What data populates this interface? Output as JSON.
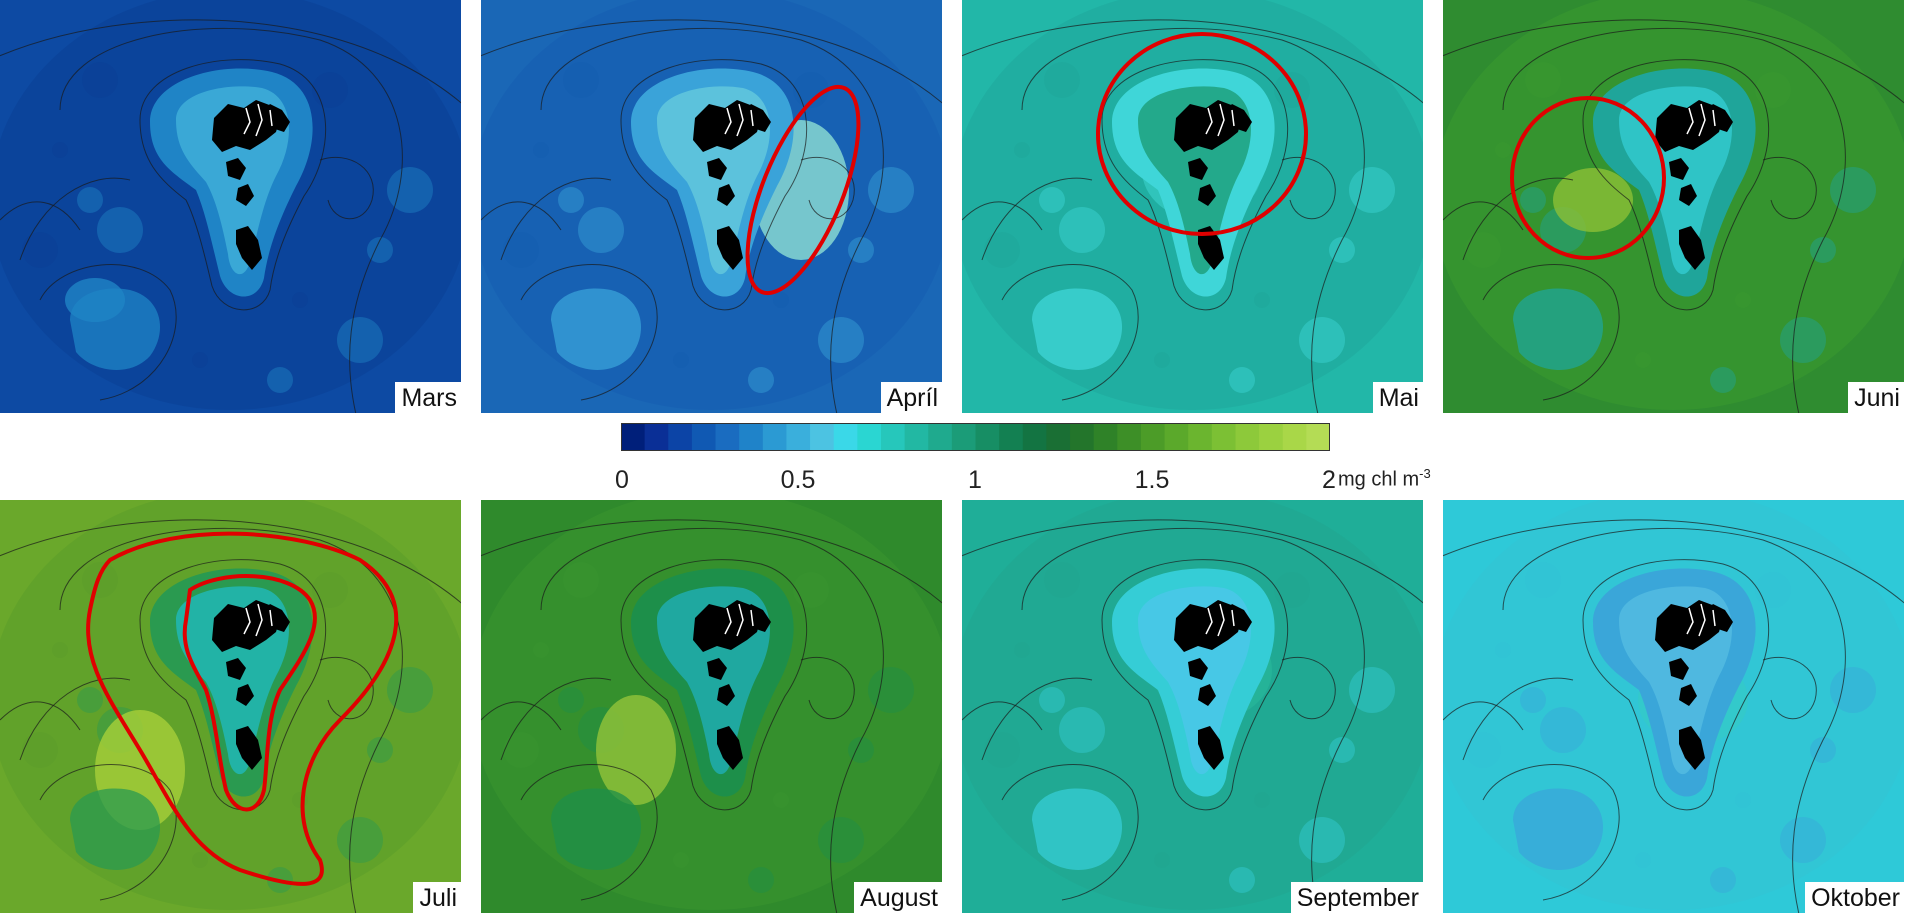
{
  "panels": [
    {
      "month": "Mars",
      "bg": "#0d4aa3",
      "shelf": "#1f84c6",
      "core": "#3aa8d6",
      "blob": "#1f84c6",
      "outer": "#0b3f95"
    },
    {
      "month": "Apríl",
      "bg": "#1a67b6",
      "shelf": "#3aa3d9",
      "core": "#5cc2dc",
      "blob": "#8fe0d3",
      "outer": "#155db0"
    },
    {
      "month": "Mai",
      "bg": "#22b7a8",
      "shelf": "#3fd6d8",
      "core": "#23a98b",
      "blob": "#35c9c2",
      "outer": "#1fa79a"
    },
    {
      "month": "Juni",
      "bg": "#2f8c30",
      "shelf": "#1fa59a",
      "core": "#2fc4c6",
      "blob": "#8cbf36",
      "outer": "#3a9a30"
    },
    {
      "month": "Juli",
      "bg": "#6aa82b",
      "shelf": "#2a9a50",
      "core": "#22b3a6",
      "blob": "#a8cf3a",
      "outer": "#5a9c2a"
    },
    {
      "month": "August",
      "bg": "#2f8a2c",
      "shelf": "#1d8f4a",
      "core": "#1fa8a0",
      "blob": "#93c33a",
      "outer": "#3a9530"
    },
    {
      "month": "September",
      "bg": "#1fae98",
      "shelf": "#35cdd6",
      "core": "#47c8e6",
      "blob": "#27b59a",
      "outer": "#21a590"
    },
    {
      "month": "Oktober",
      "bg": "#2ec9d8",
      "shelf": "#3aa6d9",
      "core": "#4fb8e0",
      "blob": "#35c9c8",
      "outer": "#34c2d4"
    }
  ],
  "colorbar": {
    "ticks": [
      "0",
      "0.5",
      "1",
      "1.5",
      "2"
    ],
    "tick_values": [
      0,
      0.5,
      1,
      1.5,
      2
    ],
    "range": [
      0,
      2
    ],
    "unit_prefix": "mg chl m",
    "unit_exponent": "-3",
    "colors": [
      "#001f7a",
      "#0a2f96",
      "#0c44a6",
      "#1059b3",
      "#1a6cc0",
      "#1f83c9",
      "#2b9ad3",
      "#3aafdc",
      "#4cc3e2",
      "#3ad8e8",
      "#2ad6d2",
      "#26c7bb",
      "#22b8a3",
      "#1faa8e",
      "#1b9c78",
      "#178e64",
      "#138052",
      "#137442",
      "#1a6f34",
      "#23752b",
      "#2f8228",
      "#3d8f27",
      "#4c9c28",
      "#5ba92b",
      "#6bb52f",
      "#7cc034",
      "#8dc93a",
      "#9bd140",
      "#a9d748",
      "#b4dc55"
    ]
  },
  "annotation_color": "#e00000",
  "land_color": "#000000"
}
